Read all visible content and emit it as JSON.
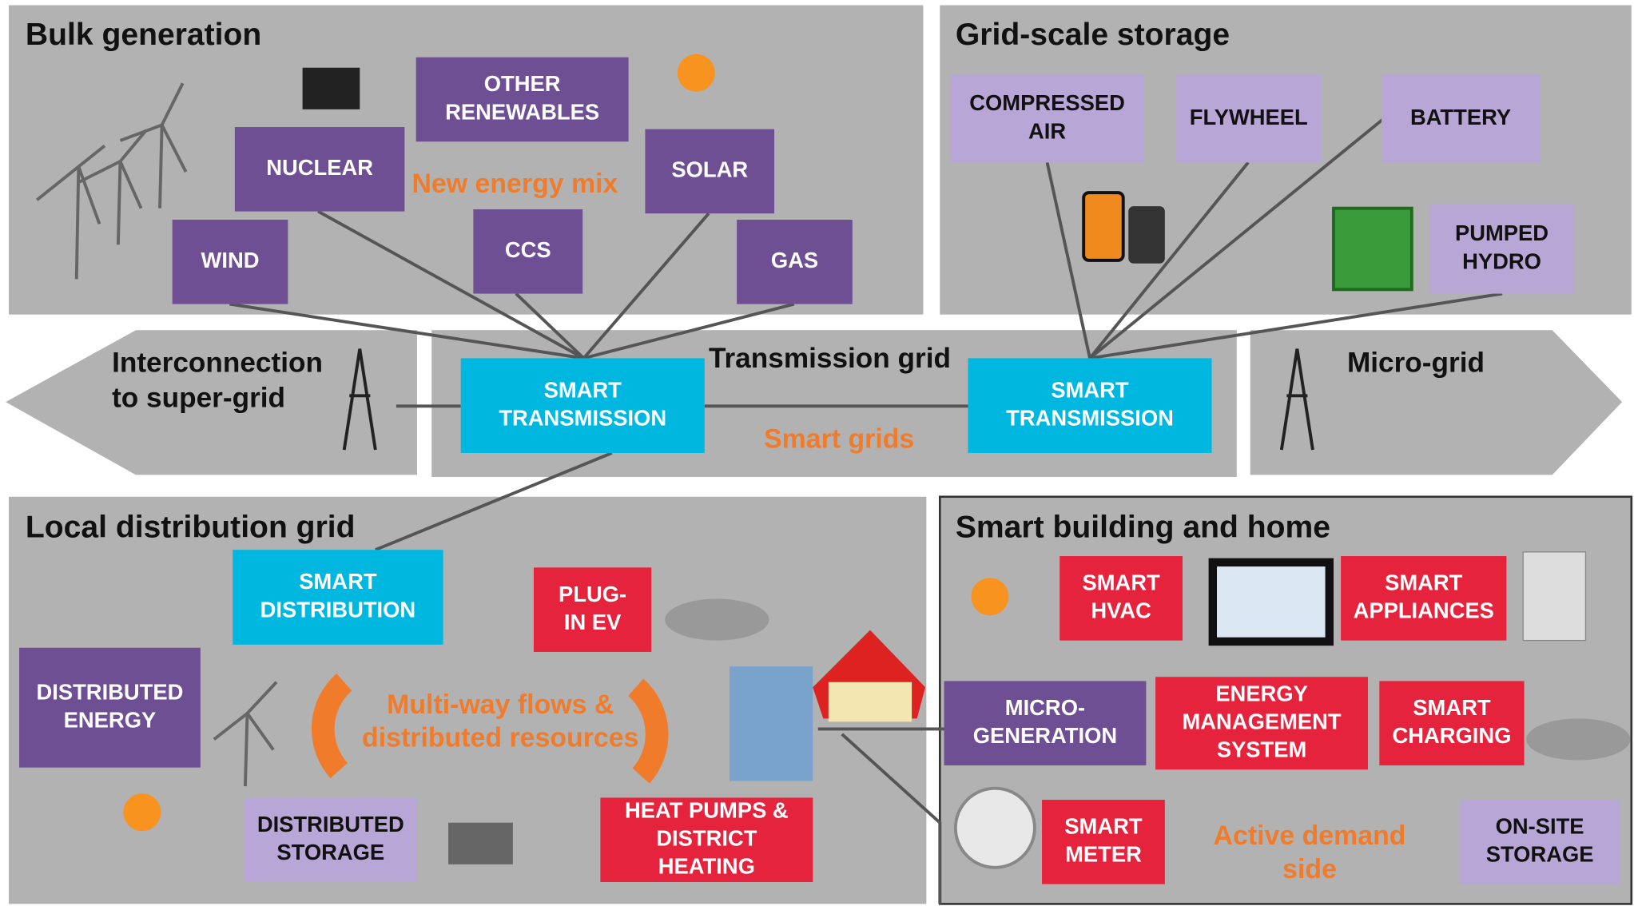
{
  "sections": [
    {
      "title": "Bulk generation"
    },
    {
      "title": "Grid-scale storage"
    },
    {
      "title": "Local distribution grid"
    },
    {
      "title": "Smart building and home"
    }
  ],
  "grid_labels": [
    {
      "lines": [
        "Interconnection",
        "to super-grid"
      ]
    },
    {
      "lines": [
        "Transmission grid"
      ]
    },
    {
      "lines": [
        "Micro-grid"
      ]
    }
  ],
  "highlights": [
    {
      "lines": [
        "New energy mix"
      ]
    },
    {
      "lines": [
        "Smart grids"
      ]
    },
    {
      "lines": [
        "Multi-way flows &",
        "distributed resources"
      ]
    },
    {
      "lines": [
        "Active demand",
        "side"
      ]
    }
  ],
  "boxes": [
    {
      "lines": [
        "OTHER",
        "RENEWABLES"
      ]
    },
    {
      "lines": [
        "NUCLEAR"
      ]
    },
    {
      "lines": [
        "SOLAR"
      ]
    },
    {
      "lines": [
        "WIND"
      ]
    },
    {
      "lines": [
        "CCS"
      ]
    },
    {
      "lines": [
        "GAS"
      ]
    },
    {
      "lines": [
        "COMPRESSED",
        "AIR"
      ]
    },
    {
      "lines": [
        "FLYWHEEL"
      ]
    },
    {
      "lines": [
        "BATTERY"
      ]
    },
    {
      "lines": [
        "PUMPED",
        "HYDRO"
      ]
    },
    {
      "lines": [
        "SMART",
        "TRANSMISSION"
      ]
    },
    {
      "lines": [
        "SMART",
        "TRANSMISSION"
      ]
    },
    {
      "lines": [
        "SMART",
        "DISTRIBUTION"
      ]
    },
    {
      "lines": [
        "PLUG-",
        "IN EV"
      ]
    },
    {
      "lines": [
        "DISTRIBUTED",
        "ENERGY"
      ]
    },
    {
      "lines": [
        "DISTRIBUTED",
        "STORAGE"
      ]
    },
    {
      "lines": [
        "HEAT PUMPS &",
        "DISTRICT",
        "HEATING"
      ]
    },
    {
      "lines": [
        "SMART",
        "HVAC"
      ]
    },
    {
      "lines": [
        "SMART",
        "APPLIANCES"
      ]
    },
    {
      "lines": [
        "MICRO-",
        "GENERATION"
      ]
    },
    {
      "lines": [
        "ENERGY",
        "MANAGEMENT",
        "SYSTEM"
      ]
    },
    {
      "lines": [
        "SMART",
        "CHARGING"
      ]
    },
    {
      "lines": [
        "SMART",
        "METER"
      ]
    },
    {
      "lines": [
        "ON-SITE",
        "STORAGE"
      ]
    }
  ]
}
